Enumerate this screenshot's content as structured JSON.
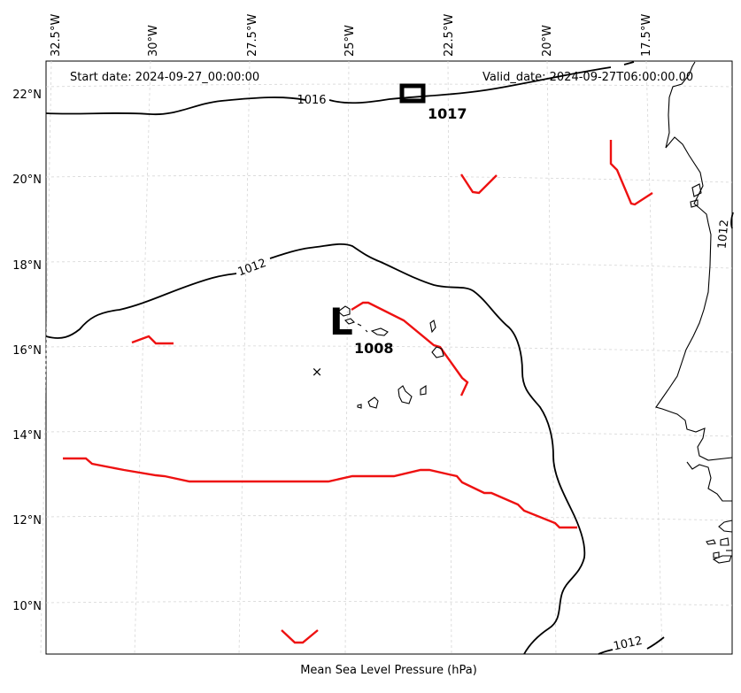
{
  "header": {
    "start_date": "Start date: 2024-09-27_00:00:00",
    "valid_date": "Valid_date: 2024-09-27T06:00:00.00"
  },
  "footer": {
    "caption": "Mean Sea Level Pressure (hPa)"
  },
  "axes": {
    "lat_ticks": [
      "22°N",
      "20°N",
      "18°N",
      "16°N",
      "14°N",
      "12°N",
      "10°N"
    ],
    "lon_ticks": [
      "32.5°W",
      "30°W",
      "27.5°W",
      "25°W",
      "22.5°W",
      "20°W",
      "17.5°W"
    ]
  },
  "contours": {
    "units": "hPa",
    "labels": [
      "1016",
      "1012",
      "1012",
      "1012"
    ]
  },
  "centers": [
    {
      "type": "H",
      "symbol": "H",
      "value": "1017"
    },
    {
      "type": "L",
      "symbol": "L",
      "value": "1008"
    }
  ],
  "colors": {
    "isobar": "#000000",
    "trough": "#ee1111",
    "grid": "#d0d0d0",
    "frame": "#000000"
  },
  "markers": [
    {
      "symbol": "×",
      "name": "storm-position"
    }
  ]
}
